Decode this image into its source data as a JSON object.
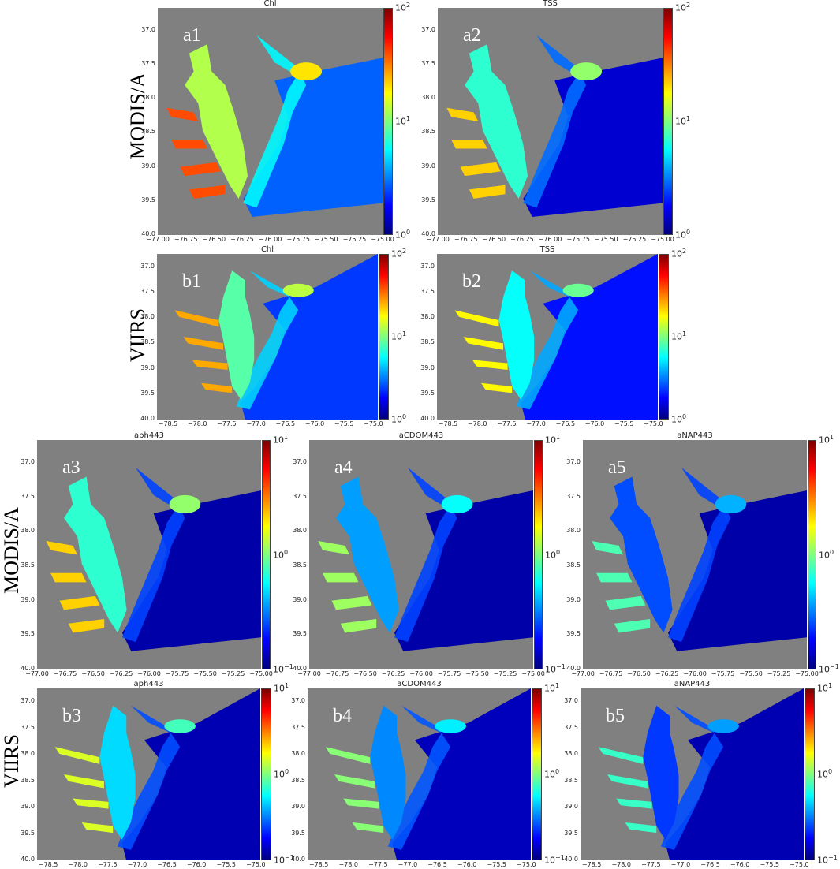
{
  "colors": {
    "land": "#808080",
    "jet": [
      "#00007f",
      "#0000ff",
      "#007fff",
      "#00ffff",
      "#7fff7f",
      "#ffff00",
      "#ff7f00",
      "#ff0000",
      "#7f0000"
    ]
  },
  "row_labels": {
    "a": "MODIS/A",
    "b": "VIIRS",
    "c": "MODIS/A",
    "d": "VIIRS"
  },
  "chart_data": [
    {
      "id": "a1",
      "type": "heatmap",
      "label": "a1",
      "title": "Chl",
      "colorbar": [
        "10^0",
        "10^1",
        "10^2"
      ],
      "yticks": [
        "37.0",
        "37.5",
        "38.0",
        "38.5",
        "39.0",
        "39.5",
        "40.0"
      ],
      "xticks": [
        "−77.00",
        "−76.75",
        "−76.50",
        "−76.25",
        "−76.00",
        "−75.75",
        "−75.50",
        "−75.25",
        "−75.00"
      ],
      "level": 0.55,
      "ocean_level": 0.22,
      "projection": "modis"
    },
    {
      "id": "a2",
      "type": "heatmap",
      "label": "a2",
      "title": "TSS",
      "colorbar": [
        "10^0",
        "10^1",
        "10^2"
      ],
      "yticks": [
        "37.0",
        "37.5",
        "38.0",
        "38.5",
        "39.0",
        "39.5",
        "40.0"
      ],
      "xticks": [
        "−77.00",
        "−76.75",
        "−76.50",
        "−76.25",
        "−76.00",
        "−75.75",
        "−75.50",
        "−75.25",
        "−75.00"
      ],
      "level": 0.42,
      "ocean_level": 0.08,
      "projection": "modis"
    },
    {
      "id": "b1",
      "type": "heatmap",
      "label": "b1",
      "title": "Chl",
      "colorbar": [
        "10^0",
        "10^1",
        "10^2"
      ],
      "yticks": [
        "37.0",
        "37.5",
        "38.0",
        "38.5",
        "39.0",
        "39.5",
        "40.0"
      ],
      "xticks": [
        "−78.5",
        "−78.0",
        "−77.5",
        "−77.0",
        "−76.5",
        "−76.0",
        "−75.5",
        "−75.0"
      ],
      "level": 0.46,
      "ocean_level": 0.18,
      "projection": "viirs"
    },
    {
      "id": "b2",
      "type": "heatmap",
      "label": "b2",
      "title": "TSS",
      "colorbar": [
        "10^0",
        "10^1",
        "10^2"
      ],
      "yticks": [
        "37.0",
        "37.5",
        "38.0",
        "38.5",
        "39.0",
        "39.5",
        "40.0"
      ],
      "xticks": [
        "−78.5",
        "−78.0",
        "−77.5",
        "−77.0",
        "−76.5",
        "−76.0",
        "−75.5",
        "−75.0"
      ],
      "level": 0.38,
      "ocean_level": 0.14,
      "projection": "viirs"
    },
    {
      "id": "a3",
      "type": "heatmap",
      "label": "a3",
      "title": "aph443",
      "colorbar": [
        "10^−1",
        "10^0",
        "10^1"
      ],
      "yticks": [
        "37.0",
        "37.5",
        "38.0",
        "38.5",
        "39.0",
        "39.5",
        "40.0"
      ],
      "xticks": [
        "−77.00",
        "−76.75",
        "−76.50",
        "−76.25",
        "−76.00",
        "−75.75",
        "−75.50",
        "−75.25",
        "−75.00"
      ],
      "level": 0.42,
      "ocean_level": 0.04,
      "projection": "modis"
    },
    {
      "id": "a4",
      "type": "heatmap",
      "label": "a4",
      "title": "aCDOM443",
      "colorbar": [
        "10^−1",
        "10^0",
        "10^1"
      ],
      "yticks": [
        "37.0",
        "37.5",
        "38.0",
        "38.5",
        "39.0",
        "39.5",
        "40.0"
      ],
      "xticks": [
        "−77.00",
        "−76.75",
        "−76.50",
        "−76.25",
        "−76.00",
        "−75.75",
        "−75.50",
        "−75.25",
        "−75.00"
      ],
      "level": 0.28,
      "ocean_level": 0.04,
      "projection": "modis"
    },
    {
      "id": "a5",
      "type": "heatmap",
      "label": "a5",
      "title": "aNAP443",
      "colorbar": [
        "10^−1",
        "10^0",
        "10^1"
      ],
      "yticks": [
        "37.0",
        "37.5",
        "38.0",
        "38.5",
        "39.0",
        "39.5",
        "40.0"
      ],
      "xticks": [
        "−77.00",
        "−76.75",
        "−76.50",
        "−76.25",
        "−76.00",
        "−75.75",
        "−75.50",
        "−75.25",
        "−75.00"
      ],
      "level": 0.2,
      "ocean_level": 0.04,
      "projection": "modis"
    },
    {
      "id": "b3",
      "type": "heatmap",
      "label": "b3",
      "title": "aph443",
      "colorbar": [
        "10^−1",
        "10^0",
        "10^1"
      ],
      "yticks": [
        "37.0",
        "37.5",
        "38.0",
        "38.5",
        "39.0",
        "39.5",
        "40.0"
      ],
      "xticks": [
        "−78.5",
        "−78.0",
        "−77.5",
        "−77.0",
        "−76.5",
        "−76.0",
        "−75.5",
        "−75.0"
      ],
      "level": 0.34,
      "ocean_level": 0.05,
      "projection": "viirs"
    },
    {
      "id": "b4",
      "type": "heatmap",
      "label": "b4",
      "title": "aCDOM443",
      "colorbar": [
        "10^−1",
        "10^0",
        "10^1"
      ],
      "yticks": [
        "37.0",
        "37.5",
        "38.0",
        "38.5",
        "39.0",
        "39.5",
        "40.0"
      ],
      "xticks": [
        "−78.5",
        "−78.0",
        "−77.5",
        "−77.0",
        "−76.5",
        "−76.0",
        "−75.5",
        "−75.0"
      ],
      "level": 0.26,
      "ocean_level": 0.06,
      "projection": "viirs"
    },
    {
      "id": "b5",
      "type": "heatmap",
      "label": "b5",
      "title": "aNAP443",
      "colorbar": [
        "10^−1",
        "10^0",
        "10^1"
      ],
      "yticks": [
        "37.0",
        "37.5",
        "38.0",
        "38.5",
        "39.0",
        "39.5",
        "40.0"
      ],
      "xticks": [
        "−78.5",
        "−78.0",
        "−77.5",
        "−77.0",
        "−76.5",
        "−76.0",
        "−75.5",
        "−75.0"
      ],
      "level": 0.18,
      "ocean_level": 0.05,
      "projection": "viirs"
    }
  ]
}
